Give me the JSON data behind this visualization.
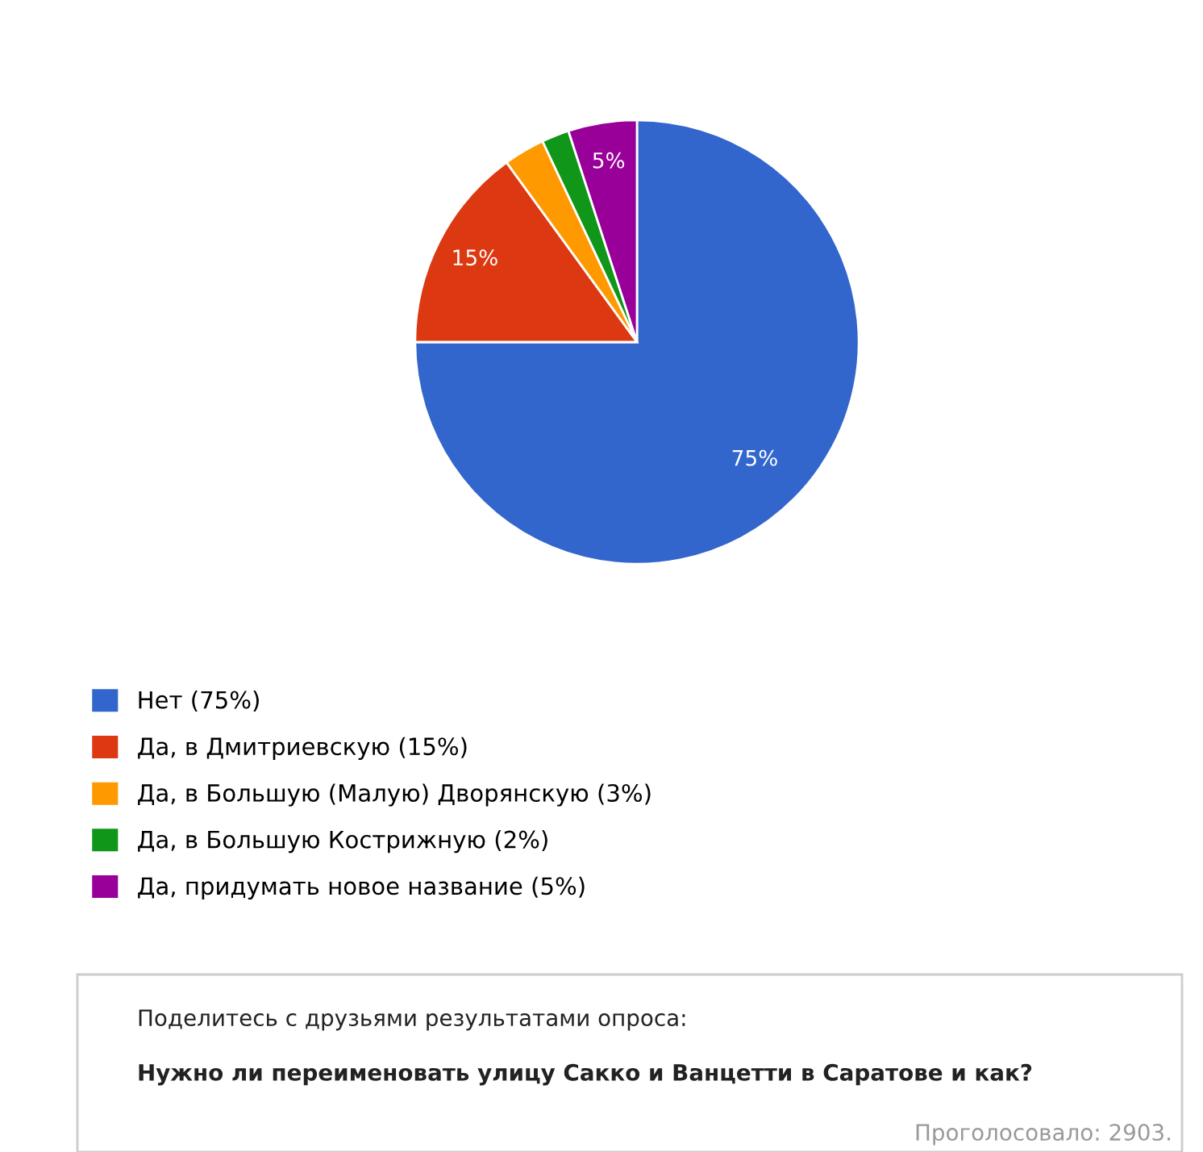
{
  "chart_data": {
    "type": "pie",
    "categories": [
      "Нет (75%)",
      "Да, в Дмитриевскую (15%)",
      "Да, в Большую (Малую) Дворянскую (3%)",
      "Да, в Большую Кострижную (2%)",
      "Да, придумать новое название (5%)"
    ],
    "values": [
      75,
      15,
      3,
      2,
      5
    ],
    "colors": [
      "#3366cc",
      "#dc3912",
      "#ff9900",
      "#109618",
      "#990099"
    ],
    "value_labels": [
      "75%",
      "15%",
      null,
      null,
      "5%"
    ],
    "legend": "bottom",
    "annotations": [
      "Поделитесь с друзьями результатами опроса:",
      "Нужно ли переименовать улицу Сакко и Ванцетти в Саратове и как?",
      "Проголосовало: 2903."
    ]
  }
}
